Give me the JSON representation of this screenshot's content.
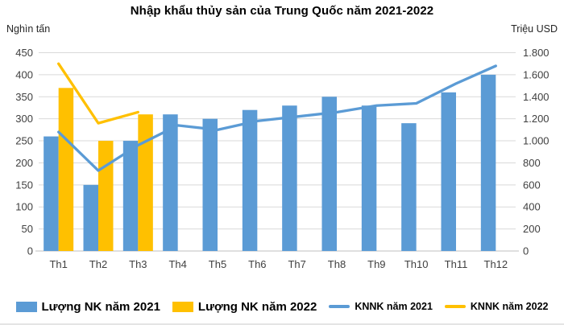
{
  "header": {
    "title": "Nhập khẩu thủy sản của Trung Quốc năm 2021-2022"
  },
  "colors": {
    "bar_blue": "#5B9BD5",
    "bar_yellow": "#FFC000",
    "gridline": "#D9D9D9",
    "axis_line": "#BFBFBF",
    "tick_text": "#404040",
    "title_text": "#000000"
  },
  "chart_data": {
    "type": "bar+line-combo",
    "title": "Nhập khẩu thủy sản của Trung Quốc năm 2021-2022",
    "categories": [
      "Th1",
      "Th2",
      "Th3",
      "Th4",
      "Th5",
      "Th6",
      "Th7",
      "Th8",
      "Th9",
      "Th10",
      "Th11",
      "Th12"
    ],
    "left_axis": {
      "label": "Nghìn tấn",
      "min": 0,
      "max": 450,
      "step": 50
    },
    "right_axis": {
      "label": "Triệu USD",
      "min": 0,
      "max": 1800,
      "step": 200,
      "tick_format": "dot-thousands"
    },
    "grid": "horizontal-only",
    "legend_position": "bottom",
    "series": [
      {
        "name": "Lượng NK năm 2021",
        "type": "bar",
        "axis": "left",
        "color": "#5B9BD5",
        "values": [
          260,
          150,
          250,
          310,
          300,
          320,
          330,
          350,
          330,
          290,
          360,
          400
        ]
      },
      {
        "name": "Lượng NK năm 2022",
        "type": "bar",
        "axis": "left",
        "color": "#FFC000",
        "values": [
          370,
          250,
          310,
          null,
          null,
          null,
          null,
          null,
          null,
          null,
          null,
          null
        ]
      },
      {
        "name": "KNNK năm 2021",
        "type": "line",
        "axis": "right",
        "color": "#5B9BD5",
        "values": [
          1080,
          730,
          960,
          1140,
          1100,
          1180,
          1220,
          1260,
          1320,
          1340,
          1520,
          1680
        ]
      },
      {
        "name": "KNNK năm 2022",
        "type": "line",
        "axis": "right",
        "color": "#FFC000",
        "values": [
          1700,
          1160,
          1260,
          null,
          null,
          null,
          null,
          null,
          null,
          null,
          null,
          null
        ]
      }
    ]
  }
}
